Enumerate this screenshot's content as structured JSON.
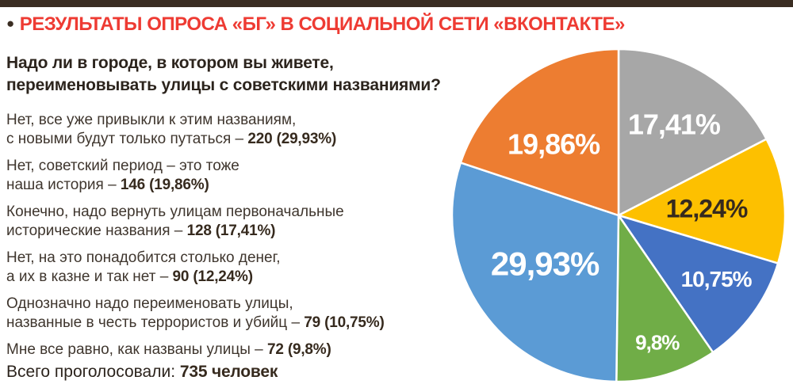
{
  "header": {
    "bullet": "●",
    "title": "РЕЗУЛЬТАТЫ ОПРОСА «БГ» В СОЦИАЛЬНОЙ СЕТИ «ВКОНТАКТЕ»",
    "title_color": "#ee3b33",
    "bar_color": "#3a2d22"
  },
  "question": "Надо ли в городе, в котором вы живете,\nпереименовывать улицы с советскими названиями?",
  "options": [
    {
      "text": "Нет, все уже привыкли к этим названиям,\nс новыми будут только путаться – ",
      "bold": "220 (29,93%)"
    },
    {
      "text": "Нет, советский период – это тоже\nнаша история – ",
      "bold": "146 (19,86%)"
    },
    {
      "text": "Конечно, надо вернуть улицам первоначальные\nисторические названия – ",
      "bold": "128 (17,41%)"
    },
    {
      "text": "Нет, на это понадобится столько денег,\nа их в казне и так нет – ",
      "bold": "90 (12,24%)"
    },
    {
      "text": "Однозначно надо переименовать улицы,\nназванные в честь террористов и убийц – ",
      "bold": "79 (10,75%)"
    },
    {
      "text": "Мне все равно, как названы улицы – ",
      "bold": "72 (9,8%)"
    }
  ],
  "total": {
    "label": "Всего проголосовали: ",
    "value": "735 человек"
  },
  "chart_data": {
    "type": "pie",
    "title": "Результаты опроса «БГ» в социальной сети «ВКонтакте»",
    "start_angle_deg": 0,
    "direction": "clockwise",
    "total_votes": 735,
    "slices": [
      {
        "label": "17,41%",
        "percent": 17.41,
        "votes": 128,
        "color": "#a7a7a7",
        "label_color": "#ffffff"
      },
      {
        "label": "12,24%",
        "percent": 12.24,
        "votes": 90,
        "color": "#fdc000",
        "label_color": "#362a1e"
      },
      {
        "label": "10,75%",
        "percent": 10.75,
        "votes": 79,
        "color": "#4472c4",
        "label_color": "#ffffff"
      },
      {
        "label": "9,8%",
        "percent": 9.8,
        "votes": 72,
        "color": "#70ad47",
        "label_color": "#ffffff"
      },
      {
        "label": "29,93%",
        "percent": 29.93,
        "votes": 220,
        "color": "#5b9bd5",
        "label_color": "#ffffff"
      },
      {
        "label": "19,86%",
        "percent": 19.86,
        "votes": 146,
        "color": "#ed7d31",
        "label_color": "#ffffff"
      }
    ]
  }
}
